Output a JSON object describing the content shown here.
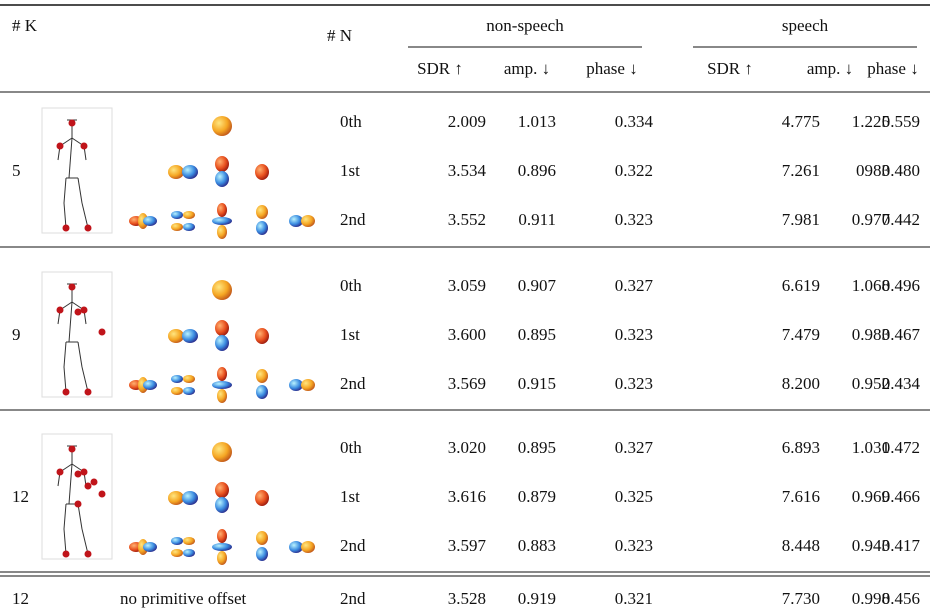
{
  "header": {
    "k": "# K",
    "n": "# N",
    "groups": [
      "non-speech",
      "speech"
    ],
    "metrics": [
      "SDR ↑",
      "amp. ↓",
      "phase ↓",
      "SDR ↑",
      "amp. ↓",
      "phase ↓"
    ]
  },
  "groups": [
    {
      "k": "5",
      "rows": [
        {
          "n": "0th",
          "values": [
            "2.009",
            "1.013",
            "0.334",
            "4.775",
            "1.225",
            "0.559"
          ]
        },
        {
          "n": "1st",
          "values": [
            "3.534",
            "0.896",
            "0.322",
            "7.261",
            "0983",
            "0.480"
          ]
        },
        {
          "n": "2nd",
          "values": [
            "3.552",
            "0.911",
            "0.323",
            "7.981",
            "0.977",
            "0.442"
          ]
        }
      ]
    },
    {
      "k": "9",
      "rows": [
        {
          "n": "0th",
          "values": [
            "3.059",
            "0.907",
            "0.327",
            "6.619",
            "1.068",
            "0.496"
          ]
        },
        {
          "n": "1st",
          "values": [
            "3.600",
            "0.895",
            "0.323",
            "7.479",
            "0.983",
            "0.467"
          ]
        },
        {
          "n": "2nd",
          "values": [
            "3.569",
            "0.915",
            "0.323",
            "8.200",
            "0.952",
            "0.434"
          ]
        }
      ]
    },
    {
      "k": "12",
      "rows": [
        {
          "n": "0th",
          "values": [
            "3.020",
            "0.895",
            "0.327",
            "6.893",
            "1.031",
            "0.472"
          ]
        },
        {
          "n": "1st",
          "values": [
            "3.616",
            "0.879",
            "0.325",
            "7.616",
            "0.969",
            "0.466"
          ]
        },
        {
          "n": "2nd",
          "values": [
            "3.597",
            "0.883",
            "0.323",
            "8.448",
            "0.943",
            "0.417"
          ]
        }
      ]
    }
  ],
  "ablation": {
    "k": "12",
    "label": "no primitive offset",
    "n": "2nd",
    "values": [
      "3.528",
      "0.919",
      "0.321",
      "7.730",
      "0.998",
      "0.456"
    ]
  }
}
